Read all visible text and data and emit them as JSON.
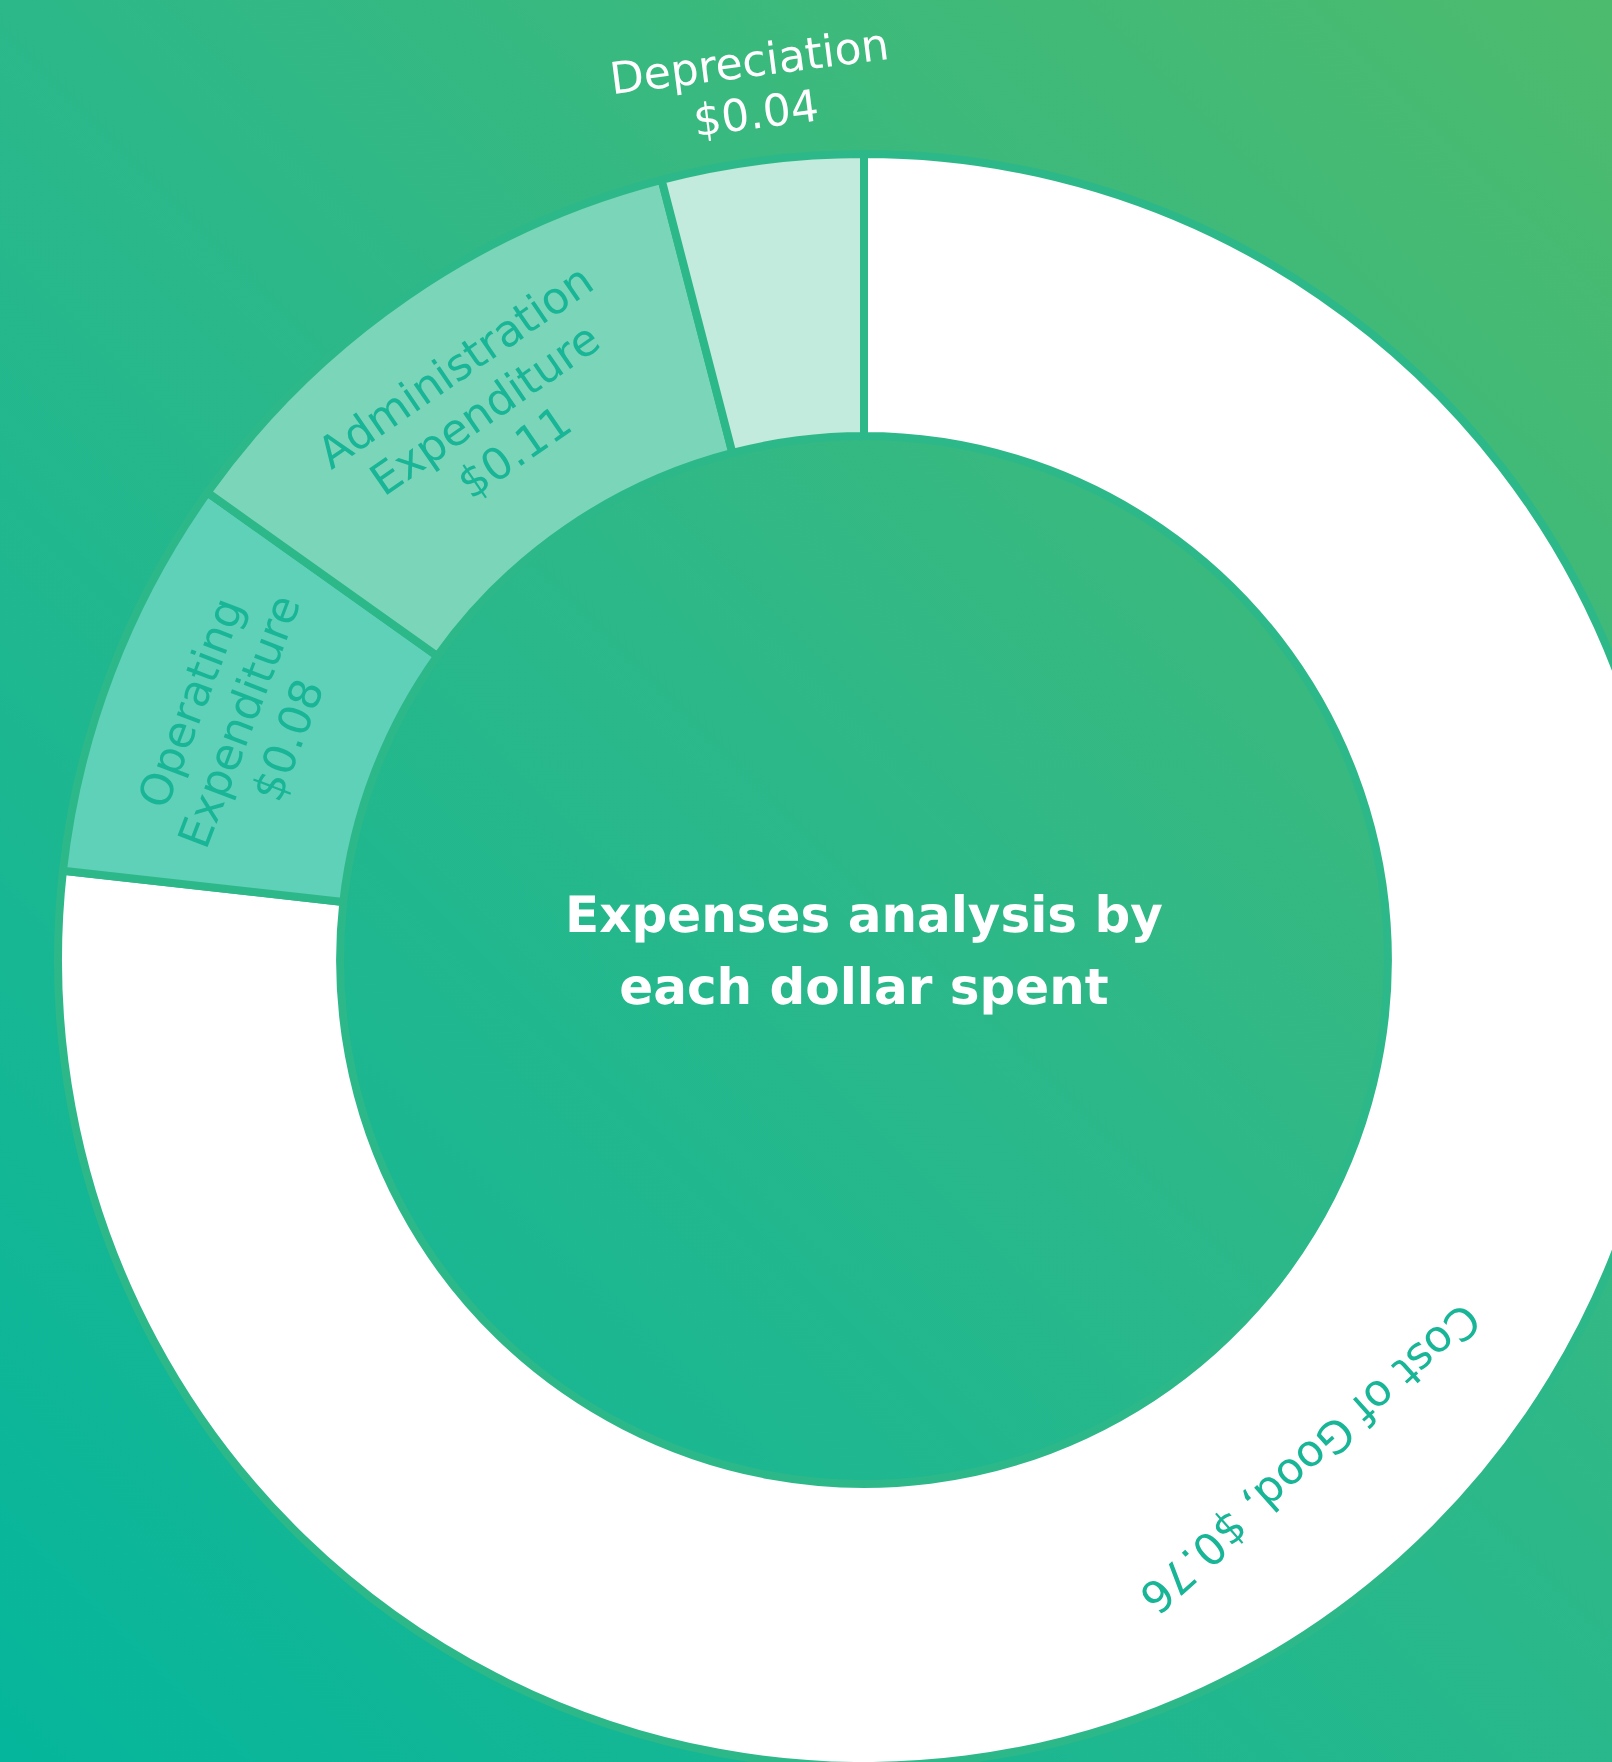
{
  "chart_data": {
    "type": "donut",
    "title": "Expenses analysis by each dollar spent",
    "categories": [
      "Cost of Good",
      "Operating Expenditure",
      "Administration Expenditure",
      "Depreciation"
    ],
    "values": [
      0.76,
      0.08,
      0.11,
      0.04
    ],
    "value_labels": [
      "$0.76",
      "$0.08",
      "$0.11",
      "$0.04"
    ],
    "colors": [
      "#ffffff",
      "#5fd1b8",
      "#7bd6b9",
      "#c2eadd"
    ],
    "legend": false
  }
}
